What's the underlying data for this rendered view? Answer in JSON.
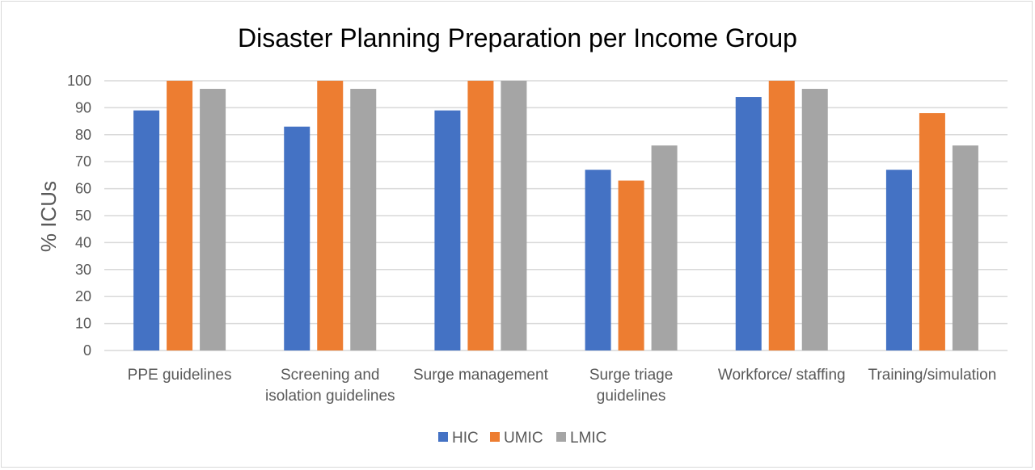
{
  "chart_data": {
    "type": "bar",
    "title": "Disaster Planning Preparation per Income Group",
    "ylabel": "% ICUs",
    "xlabel": "",
    "ylim": [
      0,
      100
    ],
    "yticks": [
      0,
      10,
      20,
      30,
      40,
      50,
      60,
      70,
      80,
      90,
      100
    ],
    "grid": true,
    "legend_position": "bottom",
    "categories": [
      [
        "PPE guidelines"
      ],
      [
        "Screening and",
        "isolation guidelines"
      ],
      [
        "Surge management"
      ],
      [
        "Surge triage",
        "guidelines"
      ],
      [
        "Workforce/ staffing"
      ],
      [
        "Training/simulation"
      ]
    ],
    "series": [
      {
        "name": "HIC",
        "color": "#4472c4",
        "values": [
          89,
          83,
          89,
          67,
          94,
          67
        ]
      },
      {
        "name": "UMIC",
        "color": "#ed7d31",
        "values": [
          100,
          100,
          100,
          63,
          100,
          88
        ]
      },
      {
        "name": "LMIC",
        "color": "#a5a5a5",
        "values": [
          97,
          97,
          100,
          76,
          97,
          76
        ]
      }
    ]
  }
}
